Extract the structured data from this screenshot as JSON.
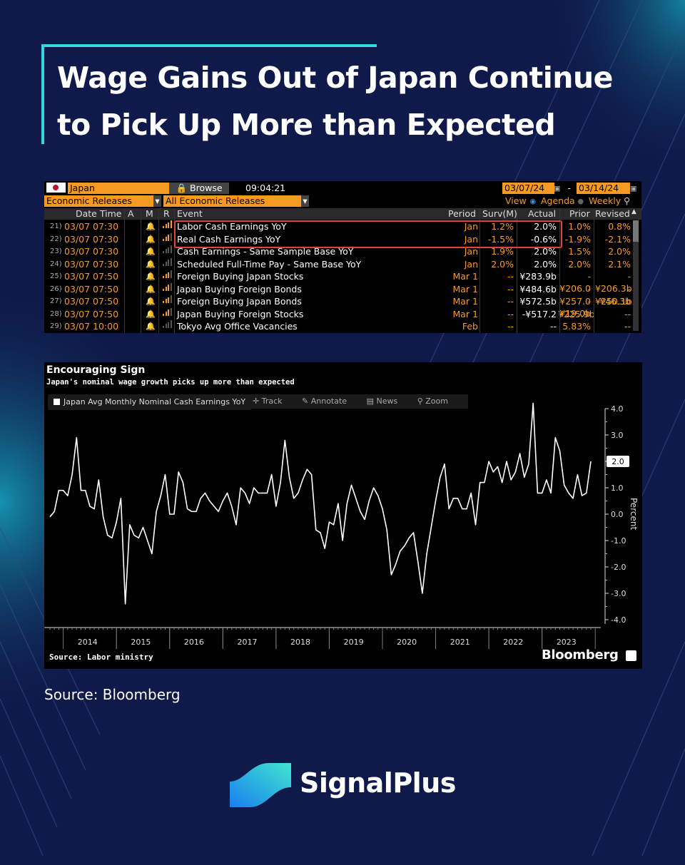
{
  "title": {
    "line1": "Wage Gains Out of Japan Continue",
    "line2": "to Pick Up More than Expected"
  },
  "terminal": {
    "country": "Japan",
    "browse_label": "Browse",
    "time": "09:04:21",
    "date_from": "03/07/24",
    "date_sep": "-",
    "date_to": "03/14/24",
    "filter1": "Economic Releases",
    "filter2": "All Economic Releases",
    "view_label": "View",
    "view_agenda": "Agenda",
    "view_weekly": "Weekly",
    "headers": {
      "date_time": "Date Time",
      "a": "A",
      "m": "M",
      "r": "R",
      "event": "Event",
      "period": "Period",
      "surv": "Surv(M)",
      "actual": "Actual",
      "prior": "Prior",
      "revised": "Revised"
    },
    "rows": [
      {
        "idx": "21)",
        "dt": "03/07 07:30",
        "event": "Labor Cash Earnings YoY",
        "period": "Jan",
        "surv": "1.2%",
        "actual": "2.0%",
        "prior": "1.0%",
        "revised": "0.8%",
        "bars": 4
      },
      {
        "idx": "22)",
        "dt": "03/07 07:30",
        "event": "Real Cash Earnings YoY",
        "period": "Jan",
        "surv": "-1.5%",
        "actual": "-0.6%",
        "prior": "-1.9%",
        "revised": "-2.1%",
        "bars": 3
      },
      {
        "idx": "23)",
        "dt": "03/07 07:30",
        "event": "Cash Earnings - Same Sample Base YoY",
        "period": "Jan",
        "surv": "1.9%",
        "actual": "2.0%",
        "prior": "1.5%",
        "revised": "2.0%",
        "bars": 0
      },
      {
        "idx": "24)",
        "dt": "03/07 07:30",
        "event": "Scheduled Full-Time Pay - Same Base YoY",
        "period": "Jan",
        "surv": "2.0%",
        "actual": "2.0%",
        "prior": "2.0%",
        "revised": "2.1%",
        "bars": 0
      },
      {
        "idx": "25)",
        "dt": "03/07 07:50",
        "event": "Foreign Buying Japan Stocks",
        "period": "Mar 1",
        "surv": "--",
        "actual": "¥283.9b",
        "prior": "-¥206.0",
        "revised": "-¥206.3b",
        "bars": 3
      },
      {
        "idx": "26)",
        "dt": "03/07 07:50",
        "event": "Japan Buying Foreign Bonds",
        "period": "Mar 1",
        "surv": "--",
        "actual": "¥484.6b",
        "prior": "-¥257.0",
        "revised": "-¥250.1b",
        "bars": 3
      },
      {
        "idx": "27)",
        "dt": "03/07 07:50",
        "event": "Foreign Buying Japan Bonds",
        "period": "Mar 1",
        "surv": "--",
        "actual": "¥572.5b",
        "prior": "-¥19.0b",
        "revised": "-¥46.3b",
        "bars": 3
      },
      {
        "idx": "28)",
        "dt": "03/07 07:50",
        "event": "Japan Buying Foreign Stocks",
        "period": "Mar 1",
        "surv": "--",
        "actual": "-¥517.2",
        "prior": "¥225.9b",
        "revised": "--",
        "bars": 3
      },
      {
        "idx": "29)",
        "dt": "03/07 10:00",
        "event": "Tokyo Avg Office Vacancies",
        "period": "Feb",
        "surv": "--",
        "actual": "--",
        "prior": "5.83%",
        "revised": "--",
        "bars": 0
      }
    ]
  },
  "chart_data": {
    "type": "line",
    "title": "Encouraging Sign",
    "subtitle": "Japan's nominal wage growth picks up more than expected",
    "legend": "Japan Avg Monthly Nominal Cash Earnings YoY",
    "tools": [
      "Track",
      "Annotate",
      "News",
      "Zoom"
    ],
    "ylabel": "Percent",
    "ylim": [
      -4.0,
      4.0
    ],
    "yticks": [
      "4.0",
      "3.0",
      "2.0",
      "1.0",
      "0.0",
      "-1.0",
      "-2.0",
      "-3.0",
      "-4.0"
    ],
    "xticks": [
      "2014",
      "2015",
      "2016",
      "2017",
      "2018",
      "2019",
      "2020",
      "2021",
      "2022",
      "2023"
    ],
    "last_value_label": "2.0",
    "x_start": "2013-10",
    "series": [
      {
        "values": [
          -0.1,
          0.1,
          0.9,
          0.9,
          0.7,
          1.5,
          2.9,
          0.9,
          0.9,
          0.3,
          0.2,
          1.3,
          -0.1,
          -0.8,
          -0.9,
          -0.3,
          0.6,
          -3.4,
          -0.4,
          -0.8,
          -0.9,
          -0.5,
          -1.0,
          -1.5,
          0.1,
          0.7,
          1.5,
          0.0,
          0.0,
          1.6,
          1.2,
          0.2,
          0.1,
          0.1,
          0.6,
          0.8,
          0.5,
          0.3,
          0.1,
          0.5,
          0.8,
          0.3,
          -0.4,
          1.0,
          0.8,
          0.4,
          1.0,
          0.8,
          0.8,
          0.8,
          1.5,
          0.3,
          1.2,
          2.8,
          1.4,
          0.6,
          0.8,
          1.3,
          1.7,
          1.5,
          -0.6,
          -0.7,
          -1.3,
          -0.3,
          -0.4,
          0.4,
          -1.0,
          0.4,
          1.1,
          0.6,
          0.1,
          -0.2,
          0.5,
          1.0,
          0.7,
          0.2,
          -0.6,
          -2.3,
          -1.9,
          -1.4,
          -1.2,
          -0.9,
          -0.7,
          -1.8,
          -3.0,
          -1.5,
          -0.5,
          0.5,
          1.4,
          1.9,
          0.2,
          0.6,
          0.6,
          0.2,
          0.2,
          0.8,
          -0.4,
          1.2,
          1.2,
          2.0,
          1.6,
          1.8,
          1.2,
          2.0,
          1.3,
          1.6,
          2.3,
          1.4,
          1.9,
          4.2,
          0.8,
          0.8,
          1.3,
          0.8,
          2.9,
          2.4,
          1.1,
          0.8,
          0.6,
          1.5,
          0.7,
          0.8,
          2.0
        ]
      }
    ]
  },
  "chart_source": "Source: Labor ministry",
  "bloomberg": "Bloomberg",
  "source": "Source: Bloomberg",
  "brand": "SignalPlus"
}
